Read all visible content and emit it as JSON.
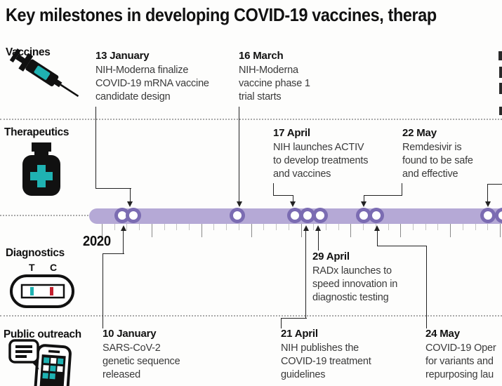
{
  "title": "Key milestones in developing COVID-19 vaccines, therap",
  "year": "2020",
  "sections": {
    "vaccines": "Vaccines",
    "therapeutics": "Therapeutics",
    "diagnostics": "Diagnostics",
    "outreach": "Public outreach"
  },
  "test_labels": {
    "t": "T",
    "c": "C"
  },
  "milestones": {
    "jan13": {
      "date": "13 January",
      "l1": "NIH-Moderna finalize",
      "l2": "COVID-19 mRNA vaccine",
      "l3": "candidate design"
    },
    "mar16": {
      "date": "16 March",
      "l1": "NIH-Moderna",
      "l2": "vaccine phase 1",
      "l3": "trial starts"
    },
    "apr17": {
      "date": "17 April",
      "l1": "NIH launches ACTIV",
      "l2": "to develop treatments",
      "l3": "and vaccines"
    },
    "may22": {
      "date": "22 May",
      "l1": "Remdesivir is",
      "l2": "found to be safe",
      "l3": "and effective"
    },
    "jan10": {
      "date": "10 January",
      "l1": "SARS-CoV-2",
      "l2": "genetic sequence",
      "l3": "released"
    },
    "apr21": {
      "date": "21 April",
      "l1": "NIH publishes the",
      "l2": "COVID-19 treatment",
      "l3": "guidelines"
    },
    "apr29": {
      "date": "29 April",
      "l1": "RADx launches to",
      "l2": "speed innovation in",
      "l3": "diagnostic testing"
    },
    "may24": {
      "date": "24 May",
      "l1": "COVID-19 Oper",
      "l2": "for variants and",
      "l3": "repurposing lau"
    }
  },
  "colors": {
    "timeline_bar": "#b5a9d6",
    "marker_ring": "#7b6cb2",
    "teal": "#1fb2b2",
    "red": "#c4202e"
  }
}
